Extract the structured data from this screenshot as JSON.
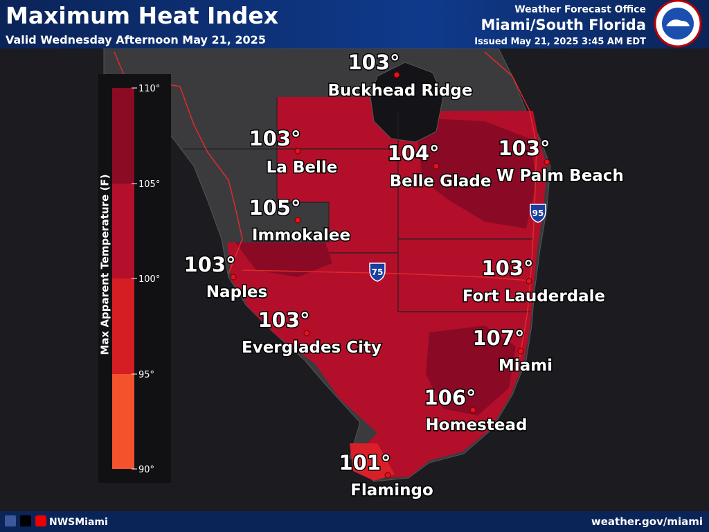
{
  "header": {
    "title": "Maximum Heat Index",
    "subtitle": "Valid Wednesday Afternoon May 21, 2025",
    "office": "Weather Forecast Office",
    "region": "Miami/South Florida",
    "issued": "Issued May 21, 2025 3:45 AM EDT"
  },
  "legend": {
    "title": "Max Apparent Temperature (F)",
    "ticks": [
      "110°",
      "105°",
      "100°",
      "95°",
      "90°"
    ]
  },
  "shields": [
    "75",
    "95"
  ],
  "cities": [
    {
      "name": "Buckhead Ridge",
      "value": "103°"
    },
    {
      "name": "La Belle",
      "value": "103°"
    },
    {
      "name": "Belle Glade",
      "value": "104°"
    },
    {
      "name": "W Palm Beach",
      "value": "103°"
    },
    {
      "name": "Immokalee",
      "value": "105°"
    },
    {
      "name": "Naples",
      "value": "103°"
    },
    {
      "name": "Fort Lauderdale",
      "value": "103°"
    },
    {
      "name": "Everglades City",
      "value": "103°"
    },
    {
      "name": "Miami",
      "value": "107°"
    },
    {
      "name": "Homestead",
      "value": "106°"
    },
    {
      "name": "Flamingo",
      "value": "101°"
    }
  ],
  "footer": {
    "handle": "NWSMiami",
    "website": "weather.gov/miami"
  }
}
